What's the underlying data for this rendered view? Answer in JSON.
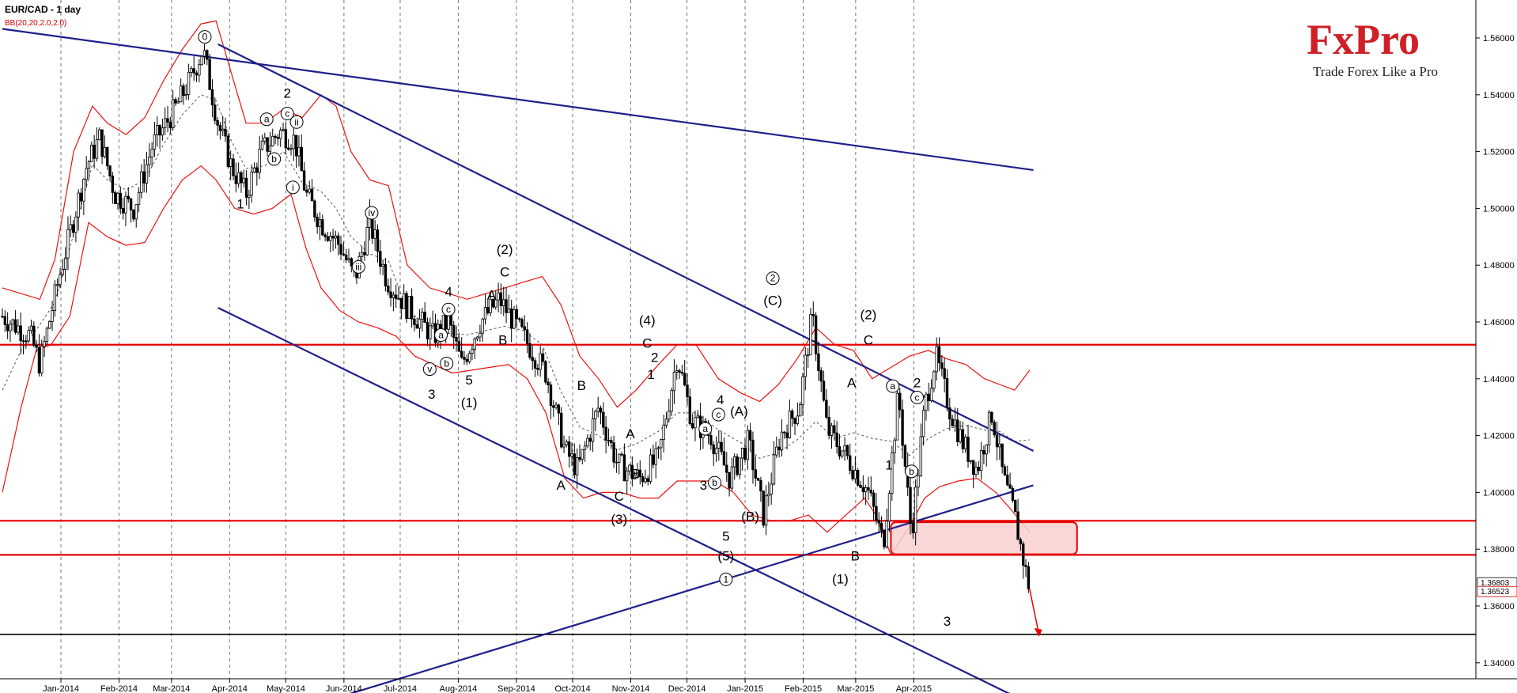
{
  "header": {
    "title": "EUR/CAD - 1 day",
    "indicator": "BB(20,20,2.0,2.0)"
  },
  "brand": {
    "name": "FxPro",
    "tagline": "Trade Forex Like a Pro",
    "color": "#d01f26"
  },
  "colors": {
    "trendline": "#1f1f8c",
    "level": "#e60000",
    "bollinger": "#ee1111",
    "midband": "#555555",
    "support": "#000000",
    "zone_fill": "#f8d0d0"
  },
  "chart_data": {
    "type": "candlestick",
    "title": "EUR/CAD - 1 day",
    "ylim": [
      1.33,
      1.575
    ],
    "y_ticks": [
      "1.56000",
      "1.54000",
      "1.52000",
      "1.50000",
      "1.48000",
      "1.46000",
      "1.44000",
      "1.42000",
      "1.40000",
      "1.38000",
      "1.36000",
      "1.34000"
    ],
    "x_ticks": [
      "Jan-2014",
      "Feb-2014",
      "Mar-2014",
      "Apr-2014",
      "May-2014",
      "Jun-2014",
      "Jul-2014",
      "Aug-2014",
      "Sep-2014",
      "Oct-2014",
      "Nov-2014",
      "Dec-2014",
      "Jan-2015",
      "Feb-2015",
      "Mar-2015",
      "Apr-2015"
    ],
    "grid": true,
    "current_price": "1.36803",
    "bid_price": "1.36523",
    "horizontal_levels": [
      1.452,
      1.39,
      1.378
    ],
    "support_level": 1.35,
    "anchors": [
      {
        "d": 0,
        "p": 1.462
      },
      {
        "d": 15,
        "p": 1.455
      },
      {
        "d": 20,
        "p": 1.445
      },
      {
        "d": 30,
        "p": 1.475
      },
      {
        "d": 45,
        "p": 1.515
      },
      {
        "d": 52,
        "p": 1.525
      },
      {
        "d": 60,
        "p": 1.505
      },
      {
        "d": 70,
        "p": 1.5
      },
      {
        "d": 80,
        "p": 1.522
      },
      {
        "d": 92,
        "p": 1.535
      },
      {
        "d": 100,
        "p": 1.545
      },
      {
        "d": 107,
        "p": 1.556
      },
      {
        "d": 115,
        "p": 1.53
      },
      {
        "d": 122,
        "p": 1.515
      },
      {
        "d": 130,
        "p": 1.505
      },
      {
        "d": 138,
        "p": 1.52
      },
      {
        "d": 148,
        "p": 1.527
      },
      {
        "d": 156,
        "p": 1.524
      },
      {
        "d": 162,
        "p": 1.505
      },
      {
        "d": 170,
        "p": 1.495
      },
      {
        "d": 180,
        "p": 1.487
      },
      {
        "d": 188,
        "p": 1.475
      },
      {
        "d": 196,
        "p": 1.495
      },
      {
        "d": 205,
        "p": 1.475
      },
      {
        "d": 215,
        "p": 1.466
      },
      {
        "d": 230,
        "p": 1.455
      },
      {
        "d": 238,
        "p": 1.46
      },
      {
        "d": 245,
        "p": 1.445
      },
      {
        "d": 255,
        "p": 1.46
      },
      {
        "d": 265,
        "p": 1.468
      },
      {
        "d": 275,
        "p": 1.458
      },
      {
        "d": 290,
        "p": 1.442
      },
      {
        "d": 300,
        "p": 1.415
      },
      {
        "d": 307,
        "p": 1.408
      },
      {
        "d": 318,
        "p": 1.43
      },
      {
        "d": 328,
        "p": 1.41
      },
      {
        "d": 340,
        "p": 1.405
      },
      {
        "d": 350,
        "p": 1.412
      },
      {
        "d": 360,
        "p": 1.448
      },
      {
        "d": 368,
        "p": 1.425
      },
      {
        "d": 378,
        "p": 1.42
      },
      {
        "d": 388,
        "p": 1.405
      },
      {
        "d": 398,
        "p": 1.418
      },
      {
        "d": 406,
        "p": 1.392
      },
      {
        "d": 415,
        "p": 1.42
      },
      {
        "d": 425,
        "p": 1.43
      },
      {
        "d": 432,
        "p": 1.462
      },
      {
        "d": 440,
        "p": 1.422
      },
      {
        "d": 450,
        "p": 1.413
      },
      {
        "d": 462,
        "p": 1.4
      },
      {
        "d": 470,
        "p": 1.382
      },
      {
        "d": 478,
        "p": 1.435
      },
      {
        "d": 485,
        "p": 1.385
      },
      {
        "d": 492,
        "p": 1.43
      },
      {
        "d": 498,
        "p": 1.448
      },
      {
        "d": 505,
        "p": 1.43
      },
      {
        "d": 512,
        "p": 1.418
      },
      {
        "d": 520,
        "p": 1.408
      },
      {
        "d": 528,
        "p": 1.428
      },
      {
        "d": 534,
        "p": 1.405
      },
      {
        "d": 540,
        "p": 1.392
      },
      {
        "d": 545,
        "p": 1.375
      },
      {
        "d": 548,
        "p": 1.366
      }
    ],
    "bollinger_upper": [
      {
        "d": 0,
        "p": 1.472
      },
      {
        "d": 10,
        "p": 1.47
      },
      {
        "d": 20,
        "p": 1.468
      },
      {
        "d": 28,
        "p": 1.482
      },
      {
        "d": 38,
        "p": 1.52
      },
      {
        "d": 48,
        "p": 1.536
      },
      {
        "d": 56,
        "p": 1.53
      },
      {
        "d": 66,
        "p": 1.526
      },
      {
        "d": 76,
        "p": 1.532
      },
      {
        "d": 86,
        "p": 1.545
      },
      {
        "d": 96,
        "p": 1.556
      },
      {
        "d": 106,
        "p": 1.565
      },
      {
        "d": 114,
        "p": 1.566
      },
      {
        "d": 122,
        "p": 1.548
      },
      {
        "d": 130,
        "p": 1.53
      },
      {
        "d": 140,
        "p": 1.53
      },
      {
        "d": 150,
        "p": 1.535
      },
      {
        "d": 160,
        "p": 1.532
      },
      {
        "d": 170,
        "p": 1.54
      },
      {
        "d": 178,
        "p": 1.536
      },
      {
        "d": 186,
        "p": 1.52
      },
      {
        "d": 196,
        "p": 1.51
      },
      {
        "d": 206,
        "p": 1.508
      },
      {
        "d": 216,
        "p": 1.48
      },
      {
        "d": 228,
        "p": 1.472
      },
      {
        "d": 238,
        "p": 1.47
      },
      {
        "d": 248,
        "p": 1.468
      },
      {
        "d": 258,
        "p": 1.47
      },
      {
        "d": 268,
        "p": 1.472
      },
      {
        "d": 278,
        "p": 1.474
      },
      {
        "d": 288,
        "p": 1.476
      },
      {
        "d": 298,
        "p": 1.466
      },
      {
        "d": 308,
        "p": 1.448
      },
      {
        "d": 318,
        "p": 1.44
      },
      {
        "d": 328,
        "p": 1.43
      },
      {
        "d": 338,
        "p": 1.436
      },
      {
        "d": 350,
        "p": 1.445
      },
      {
        "d": 360,
        "p": 1.452
      },
      {
        "d": 370,
        "p": 1.452
      },
      {
        "d": 382,
        "p": 1.44
      },
      {
        "d": 394,
        "p": 1.435
      },
      {
        "d": 404,
        "p": 1.432
      },
      {
        "d": 414,
        "p": 1.438
      },
      {
        "d": 424,
        "p": 1.447
      },
      {
        "d": 434,
        "p": 1.458
      },
      {
        "d": 444,
        "p": 1.452
      },
      {
        "d": 454,
        "p": 1.45
      },
      {
        "d": 464,
        "p": 1.44
      },
      {
        "d": 474,
        "p": 1.444
      },
      {
        "d": 484,
        "p": 1.448
      },
      {
        "d": 494,
        "p": 1.45
      },
      {
        "d": 504,
        "p": 1.447
      },
      {
        "d": 514,
        "p": 1.445
      },
      {
        "d": 524,
        "p": 1.44
      },
      {
        "d": 532,
        "p": 1.438
      },
      {
        "d": 540,
        "p": 1.436
      },
      {
        "d": 548,
        "p": 1.443
      }
    ],
    "bollinger_lower": [
      {
        "d": 0,
        "p": 1.4
      },
      {
        "d": 10,
        "p": 1.43
      },
      {
        "d": 18,
        "p": 1.45
      },
      {
        "d": 26,
        "p": 1.452
      },
      {
        "d": 36,
        "p": 1.462
      },
      {
        "d": 46,
        "p": 1.495
      },
      {
        "d": 56,
        "p": 1.49
      },
      {
        "d": 66,
        "p": 1.487
      },
      {
        "d": 76,
        "p": 1.488
      },
      {
        "d": 86,
        "p": 1.5
      },
      {
        "d": 96,
        "p": 1.51
      },
      {
        "d": 106,
        "p": 1.515
      },
      {
        "d": 114,
        "p": 1.51
      },
      {
        "d": 124,
        "p": 1.5
      },
      {
        "d": 134,
        "p": 1.498
      },
      {
        "d": 144,
        "p": 1.5
      },
      {
        "d": 154,
        "p": 1.505
      },
      {
        "d": 162,
        "p": 1.486
      },
      {
        "d": 170,
        "p": 1.472
      },
      {
        "d": 180,
        "p": 1.464
      },
      {
        "d": 190,
        "p": 1.46
      },
      {
        "d": 200,
        "p": 1.458
      },
      {
        "d": 210,
        "p": 1.455
      },
      {
        "d": 220,
        "p": 1.448
      },
      {
        "d": 230,
        "p": 1.445
      },
      {
        "d": 240,
        "p": 1.442
      },
      {
        "d": 250,
        "p": 1.443
      },
      {
        "d": 260,
        "p": 1.444
      },
      {
        "d": 270,
        "p": 1.445
      },
      {
        "d": 280,
        "p": 1.44
      },
      {
        "d": 290,
        "p": 1.428
      },
      {
        "d": 300,
        "p": 1.405
      },
      {
        "d": 310,
        "p": 1.398
      },
      {
        "d": 320,
        "p": 1.4
      },
      {
        "d": 330,
        "p": 1.4
      },
      {
        "d": 340,
        "p": 1.398
      },
      {
        "d": 350,
        "p": 1.398
      },
      {
        "d": 360,
        "p": 1.404
      },
      {
        "d": 370,
        "p": 1.404
      },
      {
        "d": 380,
        "p": 1.404
      },
      {
        "d": 390,
        "p": 1.4
      },
      {
        "d": 400,
        "p": 1.392
      },
      {
        "d": 410,
        "p": 1.39
      },
      {
        "d": 420,
        "p": 1.39
      },
      {
        "d": 430,
        "p": 1.392
      },
      {
        "d": 440,
        "p": 1.386
      },
      {
        "d": 450,
        "p": 1.392
      },
      {
        "d": 460,
        "p": 1.398
      },
      {
        "d": 466,
        "p": 1.392
      },
      {
        "d": 474,
        "p": 1.378
      },
      {
        "d": 484,
        "p": 1.388
      },
      {
        "d": 492,
        "p": 1.398
      },
      {
        "d": 500,
        "p": 1.402
      },
      {
        "d": 510,
        "p": 1.404
      },
      {
        "d": 520,
        "p": 1.405
      },
      {
        "d": 530,
        "p": 1.4
      },
      {
        "d": 538,
        "p": 1.394
      },
      {
        "d": 548,
        "p": 1.386
      }
    ],
    "wave_labels": [
      {
        "t": "0",
        "d": 108,
        "p": 1.559,
        "circled": true
      },
      {
        "t": "1",
        "d": 127,
        "p": 1.5
      },
      {
        "t": "2",
        "d": 152,
        "p": 1.539
      },
      {
        "t": "a",
        "d": 141,
        "p": 1.53,
        "circled": true
      },
      {
        "t": "b",
        "d": 145,
        "p": 1.516,
        "circled": true
      },
      {
        "t": "c",
        "d": 152,
        "p": 1.532,
        "circled": true
      },
      {
        "t": "ii",
        "d": 157,
        "p": 1.529,
        "circled": true
      },
      {
        "t": "i",
        "d": 155,
        "p": 1.506,
        "circled": true
      },
      {
        "t": "iv",
        "d": 197,
        "p": 1.497,
        "circled": true
      },
      {
        "t": "iii",
        "d": 190,
        "p": 1.478,
        "circled": true
      },
      {
        "t": "4",
        "d": 238,
        "p": 1.469
      },
      {
        "t": "c",
        "d": 238,
        "p": 1.463,
        "circled": true
      },
      {
        "t": "a",
        "d": 234,
        "p": 1.454,
        "circled": true
      },
      {
        "t": "b",
        "d": 237,
        "p": 1.444,
        "circled": true
      },
      {
        "t": "v",
        "d": 228,
        "p": 1.442,
        "circled": true
      },
      {
        "t": "3",
        "d": 229,
        "p": 1.433
      },
      {
        "t": "5",
        "d": 249,
        "p": 1.438
      },
      {
        "t": "(1)",
        "d": 249,
        "p": 1.43
      },
      {
        "t": "(2)",
        "d": 268,
        "p": 1.484
      },
      {
        "t": "C",
        "d": 268,
        "p": 1.476
      },
      {
        "t": "A",
        "d": 261,
        "p": 1.468
      },
      {
        "t": "B",
        "d": 267,
        "p": 1.452
      },
      {
        "t": "B",
        "d": 309,
        "p": 1.436
      },
      {
        "t": "A",
        "d": 298,
        "p": 1.401
      },
      {
        "t": "A",
        "d": 335,
        "p": 1.419
      },
      {
        "t": "B",
        "d": 338,
        "p": 1.405
      },
      {
        "t": "C",
        "d": 329,
        "p": 1.397
      },
      {
        "t": "(3)",
        "d": 329,
        "p": 1.389
      },
      {
        "t": "(4)",
        "d": 344,
        "p": 1.459
      },
      {
        "t": "C",
        "d": 344,
        "p": 1.451
      },
      {
        "t": "2",
        "d": 348,
        "p": 1.446
      },
      {
        "t": "1",
        "d": 346,
        "p": 1.44
      },
      {
        "t": "4",
        "d": 383,
        "p": 1.431
      },
      {
        "t": "c",
        "d": 382,
        "p": 1.426,
        "circled": true
      },
      {
        "t": "a",
        "d": 375,
        "p": 1.421,
        "circled": true
      },
      {
        "t": "b",
        "d": 380,
        "p": 1.402,
        "circled": true
      },
      {
        "t": "3",
        "d": 374,
        "p": 1.401
      },
      {
        "t": "5",
        "d": 386,
        "p": 1.383
      },
      {
        "t": "(5)",
        "d": 386,
        "p": 1.376
      },
      {
        "t": "1",
        "d": 386,
        "p": 1.368,
        "circled": true
      },
      {
        "t": "(A)",
        "d": 393,
        "p": 1.427
      },
      {
        "t": "(B)",
        "d": 399,
        "p": 1.39
      },
      {
        "t": "2",
        "d": 411,
        "p": 1.474,
        "circled": true
      },
      {
        "t": "(C)",
        "d": 411,
        "p": 1.466
      },
      {
        "t": "A",
        "d": 453,
        "p": 1.437
      },
      {
        "t": "(2)",
        "d": 462,
        "p": 1.461
      },
      {
        "t": "C",
        "d": 462,
        "p": 1.452
      },
      {
        "t": "a",
        "d": 475,
        "p": 1.436,
        "circled": true
      },
      {
        "t": "1",
        "d": 473,
        "p": 1.408
      },
      {
        "t": "2",
        "d": 488,
        "p": 1.437
      },
      {
        "t": "c",
        "d": 488,
        "p": 1.432,
        "circled": true
      },
      {
        "t": "b",
        "d": 485,
        "p": 1.406,
        "circled": true
      },
      {
        "t": "B",
        "d": 455,
        "p": 1.376
      },
      {
        "t": "(1)",
        "d": 447,
        "p": 1.368
      },
      {
        "t": "3",
        "d": 504,
        "p": 1.353
      }
    ]
  }
}
